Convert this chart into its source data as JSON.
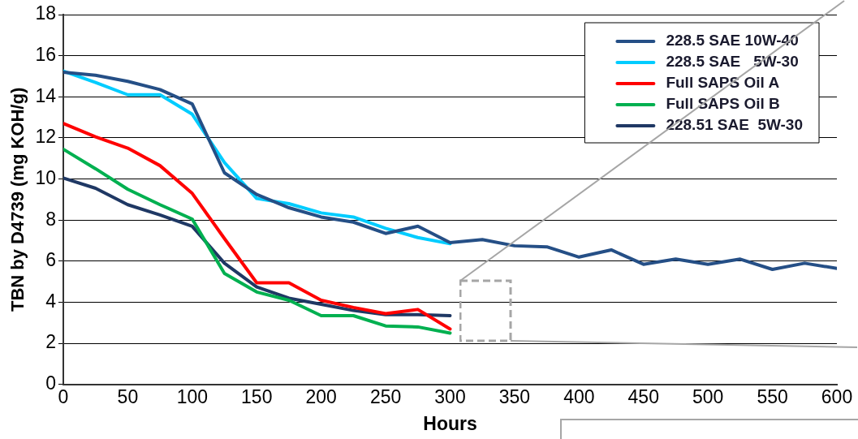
{
  "chart_data": {
    "type": "line",
    "xlabel": "Hours",
    "ylabel": "TBN by D4739 (mg KOH/g)",
    "xlim": [
      0,
      600
    ],
    "xticks": [
      0,
      50,
      100,
      150,
      200,
      250,
      300,
      350,
      400,
      450,
      500,
      550,
      600
    ],
    "ylim": [
      0,
      18
    ],
    "yticks": [
      0,
      2,
      4,
      6,
      8,
      10,
      12,
      14,
      16,
      18
    ],
    "grid": "y",
    "legend": "top right",
    "marker": "none",
    "line_style": "solid",
    "series": [
      {
        "name": "228.5 SAE 10W-40",
        "color": "#254f86",
        "x": [
          0,
          25,
          50,
          75,
          100,
          125,
          150,
          175,
          200,
          225,
          250,
          275,
          300,
          325,
          350,
          375,
          400,
          425,
          450,
          475,
          500,
          525,
          550,
          575,
          600
        ],
        "values": [
          15.2,
          15.05,
          14.75,
          14.35,
          13.65,
          10.3,
          9.25,
          8.6,
          8.15,
          7.9,
          7.35,
          7.7,
          6.9,
          7.05,
          6.75,
          6.7,
          6.2,
          6.55,
          5.85,
          6.1,
          5.85,
          6.1,
          5.6,
          5.9,
          5.65
        ]
      },
      {
        "name": "228.5 SAE   5W-30",
        "color": "#00ccff",
        "x": [
          0,
          25,
          50,
          75,
          100,
          125,
          150,
          175,
          200,
          225,
          250,
          275,
          300
        ],
        "values": [
          15.25,
          14.7,
          14.1,
          14.1,
          13.15,
          10.8,
          9.05,
          8.8,
          8.35,
          8.15,
          7.6,
          7.15,
          6.85
        ]
      },
      {
        "name": "Full SAPS Oil A",
        "color": "#ff0000",
        "x": [
          0,
          25,
          50,
          75,
          100,
          125,
          150,
          175,
          200,
          225,
          250,
          275,
          300
        ],
        "values": [
          12.7,
          12.05,
          11.5,
          10.65,
          9.3,
          7.1,
          4.95,
          4.95,
          4.1,
          3.75,
          3.45,
          3.65,
          2.7
        ]
      },
      {
        "name": "Full SAPS Oil B",
        "color": "#00b050",
        "x": [
          0,
          25,
          50,
          75,
          100,
          125,
          150,
          175,
          200,
          225,
          250,
          275,
          300
        ],
        "values": [
          11.45,
          10.5,
          9.5,
          8.75,
          8.05,
          5.4,
          4.5,
          4.1,
          3.35,
          3.35,
          2.85,
          2.8,
          2.5
        ]
      },
      {
        "name": "228.51 SAE  5W-30",
        "color": "#1f3864",
        "x": [
          0,
          25,
          50,
          75,
          100,
          125,
          150,
          175,
          200,
          225,
          250,
          275,
          300
        ],
        "values": [
          10.05,
          9.55,
          8.75,
          8.25,
          7.7,
          5.9,
          4.75,
          4.2,
          3.9,
          3.6,
          3.4,
          3.4,
          3.35
        ]
      }
    ]
  }
}
